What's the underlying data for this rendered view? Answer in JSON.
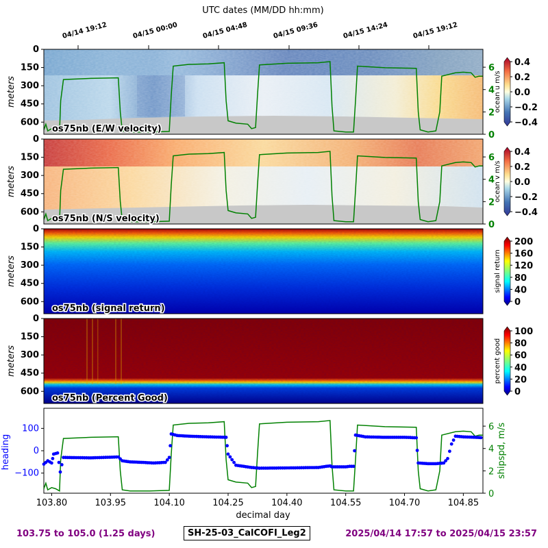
{
  "header": {
    "top_axis_title": "UTC dates (MM/DD hh:mm)"
  },
  "colors": {
    "ship_speed": "#008000",
    "heading": "#0000ff",
    "footer": "#800080",
    "no_data": "#c8c8c8"
  },
  "footer": {
    "range_label": "103.75 to 105.0 (1.25 days)",
    "cruise_label": "SH-25-03_CalCOFI_Leg2",
    "date_range": "2025/04/14 17:57 to 2025/04/15 23:57"
  },
  "chart_data": [
    {
      "type": "heatmap",
      "panel_label": "os75nb (E/W velocity)",
      "ylabel": "meters",
      "yticks": [
        "0",
        "150",
        "300",
        "450",
        "600"
      ],
      "ylim": [
        0,
        700
      ],
      "colorbar_label": "ocean u m/s",
      "colorbar_ticks": [
        "0.4",
        "0.2",
        "0.0",
        "−0.2",
        "−0.4"
      ],
      "colormap": "RdYlBu (blue→white→red)",
      "right_axis_ticks": [
        "6",
        "4",
        "2",
        "0"
      ],
      "overlay": "ship speed (green line)"
    },
    {
      "type": "heatmap",
      "panel_label": "os75nb (N/S velocity)",
      "ylabel": "meters",
      "yticks": [
        "0",
        "150",
        "300",
        "450",
        "600"
      ],
      "ylim": [
        0,
        700
      ],
      "colorbar_label": "ocean v m/s",
      "colorbar_ticks": [
        "0.4",
        "0.2",
        "0.0",
        "−0.2",
        "−0.4"
      ],
      "colormap": "RdYlBu (blue→white→red)",
      "right_axis_ticks": [
        "6",
        "4",
        "2",
        "0"
      ],
      "overlay": "ship speed (green line)"
    },
    {
      "type": "heatmap",
      "panel_label": "os75nb (signal return)",
      "ylabel": "meters",
      "yticks": [
        "0",
        "150",
        "300",
        "450",
        "600"
      ],
      "ylim": [
        0,
        700
      ],
      "colorbar_label": "signal return",
      "colorbar_ticks": [
        "200",
        "160",
        "120",
        "80",
        "40",
        "0"
      ],
      "colormap": "jet"
    },
    {
      "type": "heatmap",
      "panel_label": "os75nb (Percent Good)",
      "ylabel": "meters",
      "yticks": [
        "0",
        "150",
        "300",
        "450",
        "600"
      ],
      "ylim": [
        0,
        700
      ],
      "colorbar_label": "percent good",
      "colorbar_ticks": [
        "100",
        "80",
        "60",
        "40",
        "20",
        "0"
      ],
      "colormap": "jet"
    },
    {
      "type": "line",
      "xlabel": "decimal day",
      "xticks": [
        "103.80",
        "103.95",
        "104.10",
        "104.25",
        "104.40",
        "104.55",
        "104.70",
        "104.85"
      ],
      "xlim": [
        103.78,
        104.9
      ],
      "top_xticks": [
        "04/14 19:12",
        "04/15 00:00",
        "04/15 04:48",
        "04/15 09:36",
        "04/15 14:24",
        "04/15 19:12"
      ],
      "left_ylabel": "heading",
      "left_yticks": [
        "100",
        "0",
        "−100"
      ],
      "left_ylim": [
        -190,
        190
      ],
      "right_ylabel": "shipspd, m/s",
      "right_yticks": [
        "6",
        "4",
        "2",
        "0"
      ],
      "right_ylim": [
        0,
        7.6
      ],
      "series": [
        {
          "kind": "speed",
          "points": [
            [
              103.78,
              0.4
            ],
            [
              103.785,
              0.9
            ],
            [
              103.79,
              0.3
            ],
            [
              103.8,
              0.5
            ],
            [
              103.81,
              0.4
            ],
            [
              103.82,
              0.2
            ],
            [
              103.823,
              3.0
            ],
            [
              103.83,
              4.9
            ],
            [
              103.9,
              5.0
            ],
            [
              103.97,
              5.05
            ],
            [
              103.975,
              2.0
            ],
            [
              103.98,
              0.3
            ],
            [
              104.0,
              0.2
            ],
            [
              104.05,
              0.2
            ],
            [
              104.1,
              0.25
            ],
            [
              104.105,
              3.5
            ],
            [
              104.11,
              6.1
            ],
            [
              104.15,
              6.25
            ],
            [
              104.2,
              6.3
            ],
            [
              104.24,
              6.4
            ],
            [
              104.245,
              3.0
            ],
            [
              104.25,
              1.2
            ],
            [
              104.27,
              1.0
            ],
            [
              104.3,
              0.9
            ],
            [
              104.31,
              0.5
            ],
            [
              104.32,
              0.6
            ],
            [
              104.325,
              3.5
            ],
            [
              104.33,
              6.2
            ],
            [
              104.4,
              6.35
            ],
            [
              104.48,
              6.4
            ],
            [
              104.51,
              6.5
            ],
            [
              104.515,
              2.5
            ],
            [
              104.52,
              0.3
            ],
            [
              104.55,
              0.2
            ],
            [
              104.57,
              0.2
            ],
            [
              104.575,
              3.0
            ],
            [
              104.58,
              6.1
            ],
            [
              104.65,
              5.95
            ],
            [
              104.73,
              5.9
            ],
            [
              104.735,
              2.0
            ],
            [
              104.74,
              0.4
            ],
            [
              104.76,
              0.2
            ],
            [
              104.78,
              0.3
            ],
            [
              104.79,
              2.0
            ],
            [
              104.795,
              5.2
            ],
            [
              104.83,
              5.5
            ],
            [
              104.85,
              5.55
            ],
            [
              104.87,
              5.5
            ],
            [
              104.88,
              5.1
            ],
            [
              104.89,
              5.2
            ],
            [
              104.9,
              5.2
            ]
          ]
        },
        {
          "kind": "heading",
          "points": [
            [
              103.78,
              -60
            ],
            [
              103.79,
              -45
            ],
            [
              103.8,
              -55
            ],
            [
              103.805,
              -15
            ],
            [
              103.815,
              -10
            ],
            [
              103.822,
              -95
            ],
            [
              103.83,
              -30
            ],
            [
              103.9,
              -32
            ],
            [
              103.97,
              -28
            ],
            [
              103.98,
              -45
            ],
            [
              104.0,
              -50
            ],
            [
              104.03,
              -52
            ],
            [
              104.06,
              -55
            ],
            [
              104.09,
              -52
            ],
            [
              104.1,
              -30
            ],
            [
              104.105,
              75
            ],
            [
              104.12,
              68
            ],
            [
              104.15,
              65
            ],
            [
              104.2,
              62
            ],
            [
              104.245,
              60
            ],
            [
              104.25,
              -15
            ],
            [
              104.27,
              -65
            ],
            [
              104.29,
              -70
            ],
            [
              104.31,
              -75
            ],
            [
              104.33,
              -78
            ],
            [
              104.4,
              -77
            ],
            [
              104.48,
              -75
            ],
            [
              104.5,
              -70
            ],
            [
              104.51,
              -68
            ],
            [
              104.515,
              -72
            ],
            [
              104.53,
              -72
            ],
            [
              104.55,
              -72
            ],
            [
              104.56,
              -70
            ],
            [
              104.57,
              -70
            ],
            [
              104.575,
              70
            ],
            [
              104.6,
              62
            ],
            [
              104.65,
              60
            ],
            [
              104.7,
              60
            ],
            [
              104.73,
              58
            ],
            [
              104.735,
              -55
            ],
            [
              104.76,
              -58
            ],
            [
              104.78,
              -58
            ],
            [
              104.8,
              -55
            ],
            [
              104.81,
              -35
            ],
            [
              104.82,
              30
            ],
            [
              104.83,
              65
            ],
            [
              104.85,
              62
            ],
            [
              104.88,
              60
            ],
            [
              104.9,
              58
            ]
          ]
        }
      ]
    }
  ]
}
